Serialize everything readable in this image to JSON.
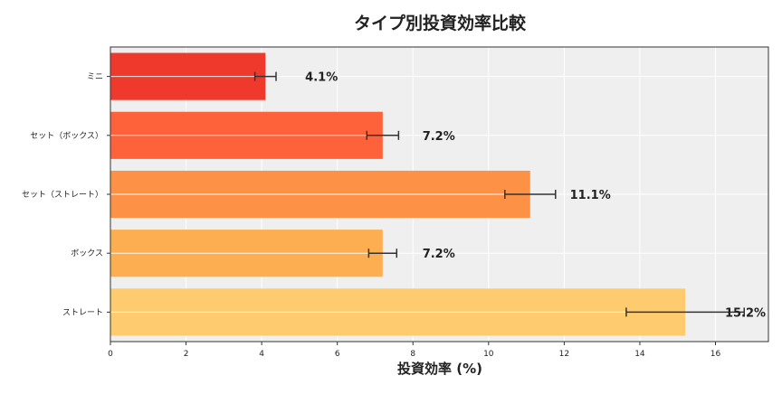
{
  "chart_data": {
    "type": "bar",
    "orientation": "horizontal",
    "title": "タイプ別投資効率比較",
    "xlabel": "投資効率 (%)",
    "ylabel": "",
    "categories": [
      "ミニ",
      "セット（ボックス）",
      "セット（ストレート）",
      "ボックス",
      "ストレート"
    ],
    "values": [
      4.1,
      7.2,
      11.1,
      7.2,
      15.2
    ],
    "errors": [
      0.28,
      0.42,
      0.67,
      0.37,
      1.56
    ],
    "data_labels": [
      "4.1%",
      "7.2%",
      "11.1%",
      "7.2%",
      "15.2%"
    ],
    "colors": [
      "#ee2e22",
      "#fd5a2f",
      "#fd8c3c",
      "#fdaa48",
      "#fec966"
    ],
    "xlim": [
      0,
      17.4
    ],
    "xticks": [
      0,
      2,
      4,
      6,
      8,
      10,
      12,
      14,
      16
    ],
    "grid": true,
    "background": "#efefef"
  }
}
